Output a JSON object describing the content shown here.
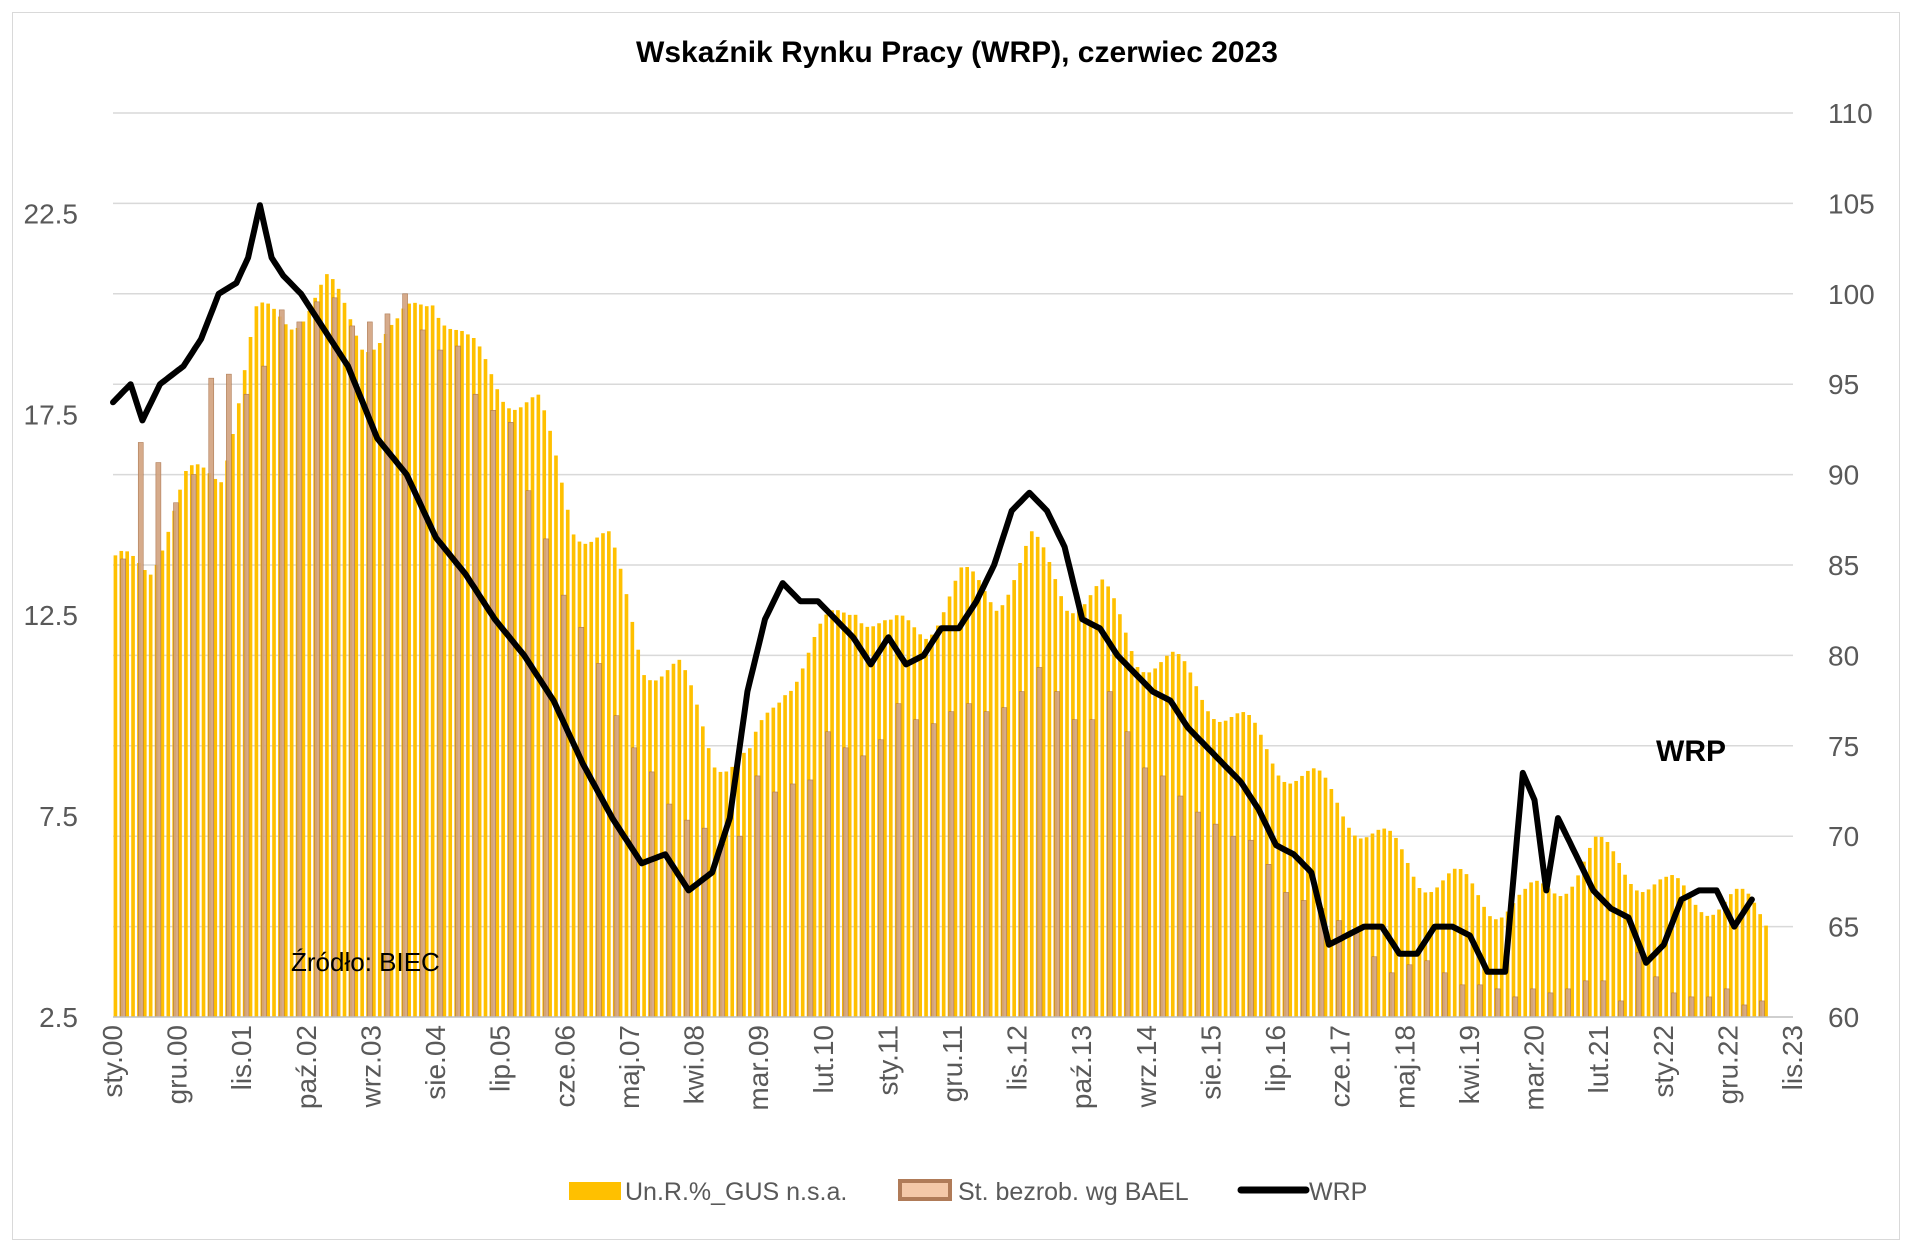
{
  "chart_data": {
    "type": "bar",
    "title": "Wskaźnik Rynku Pracy (WRP), czerwiec 2023",
    "annotation": "Źródło: BIEC",
    "wrp_label": "WRP",
    "x_tick_labels": [
      "sty.00",
      "gru.00",
      "lis.01",
      "paź.02",
      "wrz.03",
      "sie.04",
      "lip.05",
      "cze.06",
      "maj.07",
      "kwi.08",
      "mar.09",
      "lut.10",
      "sty.11",
      "gru.11",
      "lis.12",
      "paź.13",
      "wrz.14",
      "sie.15",
      "lip.16",
      "cze.17",
      "maj.18",
      "kwi.19",
      "mar.20",
      "lut.21",
      "sty.22",
      "gru.22",
      "lis.23"
    ],
    "x_tick_months": [
      0,
      11,
      22,
      33,
      44,
      55,
      66,
      77,
      88,
      99,
      110,
      121,
      132,
      143,
      154,
      165,
      176,
      187,
      198,
      209,
      220,
      231,
      242,
      253,
      264,
      275,
      286
    ],
    "y_left": {
      "min": 2.5,
      "max": 25,
      "ticks": [
        2.5,
        7.5,
        12.5,
        17.5,
        22.5
      ]
    },
    "y_right": {
      "min": 60,
      "max": 110,
      "ticks": [
        60,
        65,
        70,
        75,
        80,
        85,
        90,
        95,
        100,
        105,
        110
      ]
    },
    "legend": {
      "position": "bottom",
      "entries": [
        {
          "label": "Un.R.%_GUS n.s.a.",
          "color": "#ffc000",
          "kind": "bar"
        },
        {
          "label": "St. bezrob. wg BAEL",
          "color": "#c09070",
          "kind": "bar-outline"
        },
        {
          "label": "WRP",
          "color": "#000000",
          "kind": "line"
        }
      ]
    },
    "series": [
      {
        "name": "Un.R.%_GUS n.s.a.",
        "axis": "left",
        "color": "#ffc000",
        "knots": [
          [
            0,
            13.6
          ],
          [
            6,
            13.9
          ],
          [
            12,
            15.7
          ],
          [
            18,
            16.2
          ],
          [
            24,
            19.8
          ],
          [
            30,
            20.0
          ],
          [
            36,
            20.6
          ],
          [
            42,
            19.5
          ],
          [
            48,
            19.5
          ],
          [
            54,
            20.6
          ],
          [
            60,
            19.1
          ],
          [
            66,
            18.2
          ],
          [
            72,
            17.6
          ],
          [
            78,
            14.9
          ],
          [
            84,
            14.2
          ],
          [
            90,
            11.4
          ],
          [
            96,
            11.0
          ],
          [
            102,
            9.1
          ],
          [
            108,
            8.8
          ],
          [
            114,
            10.9
          ],
          [
            120,
            11.9
          ],
          [
            126,
            12.9
          ],
          [
            132,
            12.0
          ],
          [
            138,
            12.3
          ],
          [
            144,
            13.3
          ],
          [
            150,
            13.0
          ],
          [
            156,
            14.2
          ],
          [
            162,
            13.0
          ],
          [
            168,
            13.0
          ],
          [
            174,
            11.6
          ],
          [
            180,
            11.2
          ],
          [
            186,
            10.5
          ],
          [
            192,
            9.7
          ],
          [
            198,
            8.9
          ],
          [
            204,
            8.3
          ],
          [
            210,
            7.6
          ],
          [
            216,
            6.8
          ],
          [
            222,
            6.1
          ],
          [
            228,
            5.8
          ],
          [
            234,
            5.4
          ],
          [
            240,
            5.3
          ],
          [
            246,
            5.9
          ],
          [
            252,
            6.6
          ],
          [
            258,
            6.2
          ],
          [
            264,
            5.6
          ],
          [
            270,
            5.5
          ],
          [
            276,
            5.3
          ],
          [
            281,
            5.0
          ]
        ],
        "seasonal_amplitude": 0.45
      },
      {
        "name": "St. bezrob. wg BAEL",
        "axis": "left",
        "color": "#c09070",
        "frequency": "quarterly",
        "points": [
          [
            0,
            13.9
          ],
          [
            3,
            16.8
          ],
          [
            6,
            16.3
          ],
          [
            9,
            15.3
          ],
          [
            12,
            16.0
          ],
          [
            15,
            18.4
          ],
          [
            18,
            18.5
          ],
          [
            21,
            18.0
          ],
          [
            24,
            18.7
          ],
          [
            27,
            20.1
          ],
          [
            30,
            19.8
          ],
          [
            33,
            20.3
          ],
          [
            36,
            20.4
          ],
          [
            39,
            19.7
          ],
          [
            42,
            19.8
          ],
          [
            45,
            20.0
          ],
          [
            48,
            20.5
          ],
          [
            51,
            19.6
          ],
          [
            54,
            19.1
          ],
          [
            57,
            19.2
          ],
          [
            60,
            18.0
          ],
          [
            63,
            17.6
          ],
          [
            66,
            17.3
          ],
          [
            69,
            15.6
          ],
          [
            72,
            14.4
          ],
          [
            75,
            13.0
          ],
          [
            78,
            12.2
          ],
          [
            81,
            11.3
          ],
          [
            84,
            10.0
          ],
          [
            87,
            9.2
          ],
          [
            90,
            8.6
          ],
          [
            93,
            7.8
          ],
          [
            96,
            7.4
          ],
          [
            99,
            7.2
          ],
          [
            102,
            6.8
          ],
          [
            105,
            7.0
          ],
          [
            108,
            8.5
          ],
          [
            111,
            8.1
          ],
          [
            114,
            8.3
          ],
          [
            117,
            8.4
          ],
          [
            120,
            9.6
          ],
          [
            123,
            9.2
          ],
          [
            126,
            9.0
          ],
          [
            129,
            9.4
          ],
          [
            132,
            10.3
          ],
          [
            135,
            9.9
          ],
          [
            138,
            9.8
          ],
          [
            141,
            10.1
          ],
          [
            144,
            10.3
          ],
          [
            147,
            10.1
          ],
          [
            150,
            10.2
          ],
          [
            153,
            10.6
          ],
          [
            156,
            11.2
          ],
          [
            159,
            10.6
          ],
          [
            162,
            9.9
          ],
          [
            165,
            9.9
          ],
          [
            168,
            10.6
          ],
          [
            171,
            9.6
          ],
          [
            174,
            8.7
          ],
          [
            177,
            8.5
          ],
          [
            180,
            8.0
          ],
          [
            183,
            7.6
          ],
          [
            186,
            7.3
          ],
          [
            189,
            7.0
          ],
          [
            192,
            6.9
          ],
          [
            195,
            6.3
          ],
          [
            198,
            5.6
          ],
          [
            201,
            5.4
          ],
          [
            204,
            5.2
          ],
          [
            207,
            4.9
          ],
          [
            210,
            4.6
          ],
          [
            213,
            4.0
          ],
          [
            216,
            3.6
          ],
          [
            219,
            3.8
          ],
          [
            222,
            3.9
          ],
          [
            225,
            3.6
          ],
          [
            228,
            3.3
          ],
          [
            231,
            3.3
          ],
          [
            234,
            3.2
          ],
          [
            237,
            3.0
          ],
          [
            240,
            3.2
          ],
          [
            243,
            3.1
          ],
          [
            246,
            3.2
          ],
          [
            249,
            3.4
          ],
          [
            252,
            3.4
          ],
          [
            255,
            2.9
          ],
          [
            258,
            4.1
          ],
          [
            261,
            3.5
          ],
          [
            264,
            3.1
          ],
          [
            267,
            3.0
          ],
          [
            270,
            3.0
          ],
          [
            273,
            3.2
          ],
          [
            276,
            2.8
          ],
          [
            279,
            2.9
          ]
        ]
      },
      {
        "name": "WRP",
        "axis": "right",
        "color": "#000000",
        "knots": [
          [
            0,
            94.0
          ],
          [
            3,
            95.0
          ],
          [
            5,
            93.0
          ],
          [
            8,
            95.0
          ],
          [
            12,
            96.0
          ],
          [
            15,
            97.5
          ],
          [
            18,
            100.0
          ],
          [
            21,
            100.6
          ],
          [
            23,
            102.0
          ],
          [
            25,
            104.9
          ],
          [
            27,
            102.0
          ],
          [
            29,
            101.0
          ],
          [
            32,
            100.0
          ],
          [
            36,
            98.0
          ],
          [
            40,
            96.0
          ],
          [
            45,
            92.0
          ],
          [
            50,
            90.0
          ],
          [
            55,
            86.5
          ],
          [
            60,
            84.5
          ],
          [
            65,
            82.0
          ],
          [
            70,
            80.0
          ],
          [
            75,
            77.5
          ],
          [
            80,
            74.0
          ],
          [
            85,
            71.0
          ],
          [
            90,
            68.5
          ],
          [
            94,
            69.0
          ],
          [
            98,
            67.0
          ],
          [
            102,
            68.0
          ],
          [
            105,
            71.0
          ],
          [
            108,
            78.0
          ],
          [
            111,
            82.0
          ],
          [
            114,
            84.0
          ],
          [
            117,
            83.0
          ],
          [
            120,
            83.0
          ],
          [
            123,
            82.0
          ],
          [
            126,
            81.0
          ],
          [
            129,
            79.5
          ],
          [
            132,
            81.0
          ],
          [
            135,
            79.5
          ],
          [
            138,
            80.0
          ],
          [
            141,
            81.5
          ],
          [
            144,
            81.5
          ],
          [
            147,
            83.0
          ],
          [
            150,
            85.0
          ],
          [
            153,
            88.0
          ],
          [
            156,
            89.0
          ],
          [
            159,
            88.0
          ],
          [
            162,
            86.0
          ],
          [
            165,
            82.0
          ],
          [
            168,
            81.5
          ],
          [
            171,
            80.0
          ],
          [
            174,
            79.0
          ],
          [
            177,
            78.0
          ],
          [
            180,
            77.5
          ],
          [
            183,
            76.0
          ],
          [
            186,
            75.0
          ],
          [
            189,
            74.0
          ],
          [
            192,
            73.0
          ],
          [
            195,
            71.5
          ],
          [
            198,
            69.5
          ],
          [
            201,
            69.0
          ],
          [
            204,
            68.0
          ],
          [
            207,
            64.0
          ],
          [
            210,
            64.5
          ],
          [
            213,
            65.0
          ],
          [
            216,
            65.0
          ],
          [
            219,
            63.5
          ],
          [
            222,
            63.5
          ],
          [
            225,
            65.0
          ],
          [
            228,
            65.0
          ],
          [
            231,
            64.5
          ],
          [
            234,
            62.5
          ],
          [
            237,
            62.5
          ],
          [
            240,
            73.5
          ],
          [
            242,
            72.0
          ],
          [
            244,
            67.0
          ],
          [
            246,
            71.0
          ],
          [
            249,
            69.0
          ],
          [
            252,
            67.0
          ],
          [
            255,
            66.0
          ],
          [
            258,
            65.5
          ],
          [
            261,
            63.0
          ],
          [
            264,
            64.0
          ],
          [
            267,
            66.5
          ],
          [
            270,
            67.0
          ],
          [
            273,
            67.0
          ],
          [
            276,
            65.0
          ],
          [
            279,
            66.5
          ]
        ]
      }
    ]
  }
}
